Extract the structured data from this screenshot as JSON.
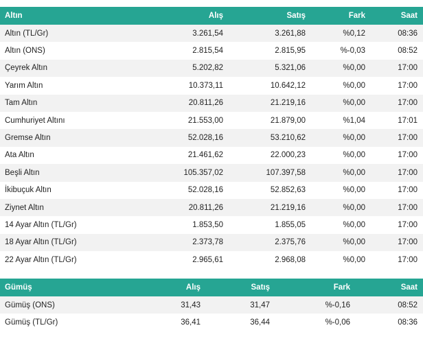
{
  "gold": {
    "headers": [
      "Altın",
      "Alış",
      "Satış",
      "Fark",
      "Saat"
    ],
    "rows": [
      [
        "Altın (TL/Gr)",
        "3.261,54",
        "3.261,88",
        "%0,12",
        "08:36"
      ],
      [
        "Altın (ONS)",
        "2.815,54",
        "2.815,95",
        "%-0,03",
        "08:52"
      ],
      [
        "Çeyrek Altın",
        "5.202,82",
        "5.321,06",
        "%0,00",
        "17:00"
      ],
      [
        "Yarım Altın",
        "10.373,11",
        "10.642,12",
        "%0,00",
        "17:00"
      ],
      [
        "Tam Altın",
        "20.811,26",
        "21.219,16",
        "%0,00",
        "17:00"
      ],
      [
        "Cumhuriyet Altını",
        "21.553,00",
        "21.879,00",
        "%1,04",
        "17:01"
      ],
      [
        "Gremse Altın",
        "52.028,16",
        "53.210,62",
        "%0,00",
        "17:00"
      ],
      [
        "Ata Altın",
        "21.461,62",
        "22.000,23",
        "%0,00",
        "17:00"
      ],
      [
        "Beşli Altın",
        "105.357,02",
        "107.397,58",
        "%0,00",
        "17:00"
      ],
      [
        "İkibuçuk Altın",
        "52.028,16",
        "52.852,63",
        "%0,00",
        "17:00"
      ],
      [
        "Ziynet Altın",
        "20.811,26",
        "21.219,16",
        "%0,00",
        "17:00"
      ],
      [
        "14 Ayar Altın (TL/Gr)",
        "1.853,50",
        "1.855,05",
        "%0,00",
        "17:00"
      ],
      [
        "18 Ayar Altın (TL/Gr)",
        "2.373,78",
        "2.375,76",
        "%0,00",
        "17:00"
      ],
      [
        "22 Ayar Altın (TL/Gr)",
        "2.965,61",
        "2.968,08",
        "%0,00",
        "17:00"
      ]
    ]
  },
  "silver": {
    "headers": [
      "Gümüş",
      "Alış",
      "Satış",
      "Fark",
      "Saat"
    ],
    "rows": [
      [
        "Gümüş (ONS)",
        "31,43",
        "31,47",
        "%-0,16",
        "08:52"
      ],
      [
        "Gümüş (TL/Gr)",
        "36,41",
        "36,44",
        "%-0,06",
        "08:36"
      ]
    ]
  },
  "colors": {
    "header_bg": "#26a593",
    "row_alt_bg": "#f2f2f2"
  }
}
